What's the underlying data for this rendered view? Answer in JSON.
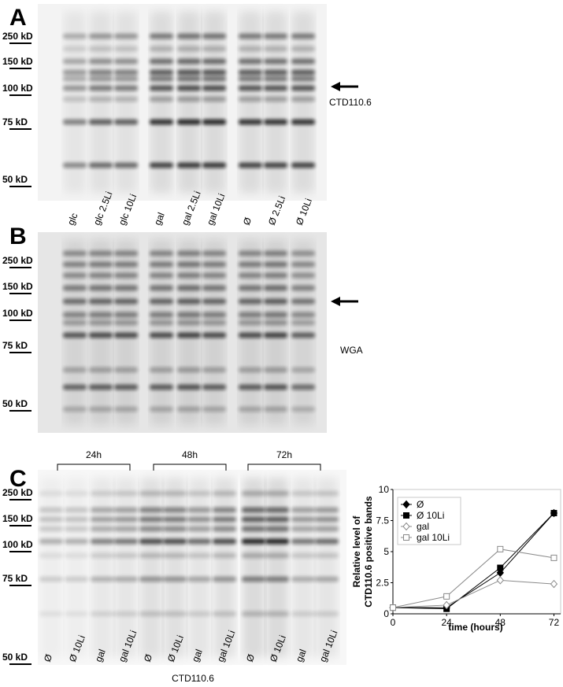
{
  "panels": [
    {
      "label": "A",
      "markers": [
        "250 kD",
        "150 kD",
        "100 kD",
        "75 kD",
        "50 kD"
      ],
      "lanes": [
        "glc",
        "glc 2.5Li",
        "glc 10Li",
        "gal",
        "gal 2.5Li",
        "gal 10Li",
        "Ø",
        "Ø 2.5Li",
        "Ø 10Li"
      ],
      "annotation": "CTD110.6"
    },
    {
      "label": "B",
      "markers": [
        "250 kD",
        "150 kD",
        "100 kD",
        "75 kD",
        "50 kD"
      ],
      "annotation": "WGA"
    },
    {
      "label": "C",
      "markers": [
        "250 kD",
        "150 kD",
        "100 kD",
        "75 kD",
        "50 kD"
      ],
      "timepoints": [
        "24h",
        "48h",
        "72h"
      ],
      "lanes": [
        "Ø",
        "Ø 10Li",
        "gal",
        "gal 10Li",
        "Ø",
        "Ø 10Li",
        "gal",
        "gal 10Li",
        "Ø",
        "Ø 10Li",
        "gal",
        "gal 10Li"
      ],
      "caption": "CTD110.6"
    }
  ],
  "chart_data": {
    "type": "line",
    "ylabel": [
      "Relative level of",
      "CTD110.6 positive bands"
    ],
    "xlabel": "time (hours)",
    "x": [
      0,
      24,
      48,
      72
    ],
    "xlim": [
      0,
      75
    ],
    "xticks": [
      0,
      24,
      48,
      72
    ],
    "ylim": [
      0,
      10
    ],
    "yticks": [
      0,
      2.5,
      5,
      7.5,
      10
    ],
    "legend": "top-left",
    "series": [
      {
        "name": "Ø",
        "color": "#000000",
        "marker": "diamond",
        "filled": true,
        "values": [
          0.5,
          0.5,
          3.3,
          8.1
        ]
      },
      {
        "name": "Ø 10Li",
        "color": "#000000",
        "marker": "square",
        "filled": true,
        "values": [
          0.5,
          0.4,
          3.7,
          8.1
        ]
      },
      {
        "name": "gal",
        "color": "#8a8a8a",
        "marker": "diamond",
        "filled": false,
        "values": [
          0.5,
          0.7,
          2.7,
          2.4
        ]
      },
      {
        "name": "gal 10Li",
        "color": "#8a8a8a",
        "marker": "square",
        "filled": false,
        "values": [
          0.5,
          1.4,
          5.2,
          4.5
        ]
      }
    ]
  }
}
